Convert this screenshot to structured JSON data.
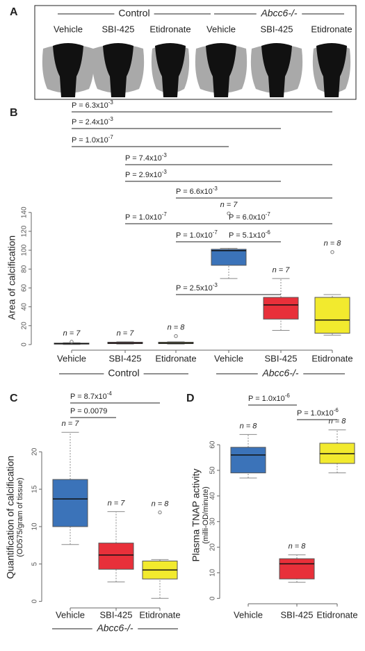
{
  "panel_a": {
    "label": "A",
    "group_labels": [
      "Control",
      "Abcc6-/-"
    ],
    "treatments": [
      "Vehicle",
      "SBI-425",
      "Etidronate",
      "Vehicle",
      "SBI-425",
      "Etidronate"
    ]
  },
  "chart_data": [
    {
      "type": "box",
      "label": "B",
      "ylabel": "Area of calcification",
      "ylim": [
        -3,
        145
      ],
      "yticks": [
        0,
        20,
        40,
        60,
        80,
        100,
        120,
        140
      ],
      "categories": [
        "Vehicle",
        "SBI-425",
        "Etidronate",
        "Vehicle",
        "SBI-425",
        "Etidronate"
      ],
      "groups": [
        {
          "name": "Control",
          "span": [
            0,
            2
          ]
        },
        {
          "name": "Abcc6-/-",
          "span": [
            3,
            5
          ]
        }
      ],
      "boxes": [
        {
          "min": 0,
          "q1": 0.5,
          "median": 1,
          "q3": 1.5,
          "max": 2,
          "outliers": [
            3
          ],
          "color": "#3b73b9",
          "n_label": "n = 7"
        },
        {
          "min": 0.5,
          "q1": 1,
          "median": 1.5,
          "q3": 2.5,
          "max": 3,
          "outliers": [],
          "color": "#e8303a",
          "n_label": "n = 7"
        },
        {
          "min": 0.5,
          "q1": 1,
          "median": 1.5,
          "q3": 2.5,
          "max": 3,
          "outliers": [
            9
          ],
          "color": "#f2ea2e",
          "n_label": "n = 8"
        },
        {
          "min": 70,
          "q1": 84,
          "median": 99.5,
          "q3": 101,
          "max": 102,
          "outliers": [
            139
          ],
          "color": "#3b73b9",
          "n_label": "n = 7"
        },
        {
          "min": 15,
          "q1": 27,
          "median": 42,
          "q3": 50,
          "max": 70,
          "outliers": [],
          "color": "#e8303a",
          "n_label": "n = 7"
        },
        {
          "min": 10,
          "q1": 12,
          "median": 26,
          "q3": 50,
          "max": 53,
          "outliers": [
            98
          ],
          "color": "#f2ea2e",
          "n_label": "n = 8"
        }
      ],
      "comparisons": [
        {
          "pair": [
            0,
            5
          ],
          "text": "P = 6.3x10",
          "exp": "-3"
        },
        {
          "pair": [
            0,
            4
          ],
          "text": "P = 2.4x10",
          "exp": "-3"
        },
        {
          "pair": [
            0,
            3
          ],
          "text": "P = 1.0x10",
          "exp": "-7"
        },
        {
          "pair": [
            1,
            5
          ],
          "text": "P = 7.4x10",
          "exp": "-3"
        },
        {
          "pair": [
            1,
            4
          ],
          "text": "P = 2.9x10",
          "exp": "-3"
        },
        {
          "pair": [
            2,
            5
          ],
          "text": "P = 6.6x10",
          "exp": "-3"
        },
        {
          "pair": [
            1,
            3
          ],
          "text": "P = 1.0x10",
          "exp": "-7"
        },
        {
          "pair": [
            3,
            5
          ],
          "text": "P = 6.0x10",
          "exp": "-7"
        },
        {
          "pair": [
            2,
            3
          ],
          "text": "P = 1.0x10",
          "exp": "-7"
        },
        {
          "pair": [
            3,
            4
          ],
          "text": "P = 5.1x10",
          "exp": "-6"
        },
        {
          "pair": [
            2,
            4
          ],
          "text": "P = 2.5x10",
          "exp": "-3"
        }
      ]
    },
    {
      "type": "box",
      "label": "C",
      "ylabel": "Quantification of calcification",
      "ylabel_sub": "(OD575/gram of tissue)",
      "ylim": [
        -0.5,
        23
      ],
      "yticks": [
        0,
        5,
        10,
        15,
        20
      ],
      "categories": [
        "Vehicle",
        "SBI-425",
        "Etidronate"
      ],
      "groups": [
        {
          "name": "Abcc6-/-",
          "span": [
            0,
            2
          ]
        }
      ],
      "boxes": [
        {
          "min": 7.6,
          "q1": 10,
          "median": 13.7,
          "q3": 16.3,
          "max": 22.6,
          "outliers": [],
          "color": "#3b73b9",
          "n_label": "n = 7"
        },
        {
          "min": 2.6,
          "q1": 4.3,
          "median": 6.2,
          "q3": 7.8,
          "max": 12,
          "outliers": [],
          "color": "#e8303a",
          "n_label": "n = 7"
        },
        {
          "min": 0.4,
          "q1": 3,
          "median": 4.2,
          "q3": 5.4,
          "max": 5.6,
          "outliers": [
            11.9
          ],
          "color": "#f2ea2e",
          "n_label": "n = 8"
        }
      ],
      "comparisons": [
        {
          "pair": [
            0,
            2
          ],
          "text": "P = 8.7x10",
          "exp": "-4"
        },
        {
          "pair": [
            0,
            1
          ],
          "text": "P = 0.0079"
        }
      ]
    },
    {
      "type": "box",
      "label": "D",
      "ylabel": "Plasma TNAP activity",
      "ylabel_sub": "(milli-OD/minute)",
      "ylim": [
        -1,
        66
      ],
      "yticks": [
        0,
        10,
        20,
        30,
        40,
        50,
        60
      ],
      "categories": [
        "Vehicle",
        "SBI-425",
        "Etidronate"
      ],
      "boxes": [
        {
          "min": 47,
          "q1": 49,
          "median": 56,
          "q3": 59,
          "max": 64,
          "outliers": [],
          "color": "#3b73b9",
          "n_label": "n = 8"
        },
        {
          "min": 6.3,
          "q1": 7.6,
          "median": 13.5,
          "q3": 15.5,
          "max": 17,
          "outliers": [],
          "color": "#e8303a",
          "n_label": "n = 8"
        },
        {
          "min": 49,
          "q1": 52.7,
          "median": 56.5,
          "q3": 60.6,
          "max": 65.8,
          "outliers": [],
          "color": "#f2ea2e",
          "n_label": "n = 8"
        }
      ],
      "comparisons": [
        {
          "pair": [
            0,
            1
          ],
          "text": "P = 1.0x10",
          "exp": "-6"
        },
        {
          "pair": [
            1,
            2
          ],
          "text": "P = 1.0x10",
          "exp": "-6"
        }
      ]
    }
  ]
}
